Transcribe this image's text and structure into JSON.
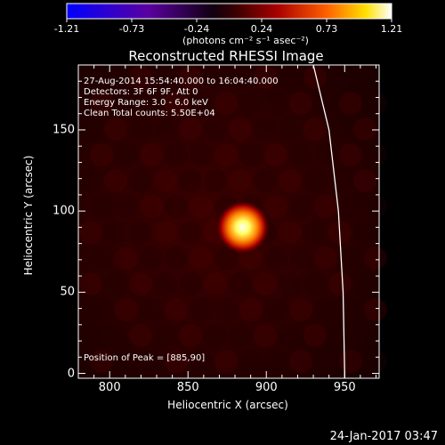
{
  "colorbar": {
    "ticks": [
      "-1.21",
      "-0.73",
      "-0.24",
      "0.24",
      "0.73",
      "1.21"
    ],
    "unit_label": "(photons cm⁻² s⁻¹ asec⁻²)",
    "colors": [
      "#0000ff",
      "#5a00a0",
      "#000000",
      "#7a0000",
      "#ff5000",
      "#ffe000",
      "#ffffff"
    ]
  },
  "chart_data": {
    "type": "heatmap",
    "title": "Reconstructed RHESSI Image",
    "xlabel": "Heliocentric X (arcsec)",
    "ylabel": "Heliocentric Y (arcsec)",
    "xlim": [
      780,
      972
    ],
    "ylim": [
      -3,
      190
    ],
    "xticks": [
      800,
      850,
      900,
      950
    ],
    "yticks": [
      0,
      50,
      100,
      150
    ],
    "info_lines": [
      "27-Aug-2014 15:54:40.000 to 16:04:40.000",
      "Detectors: 3F 6F 9F, Att 0",
      "Energy Range: 3.0 - 6.0 keV",
      "Clean     Total counts: 5.50E+04"
    ],
    "peak_label": "Position of Peak = [885,90]",
    "peak": [
      885,
      90
    ],
    "limb_curve": [
      [
        930,
        190
      ],
      [
        940,
        150
      ],
      [
        946,
        100
      ],
      [
        949,
        50
      ],
      [
        950,
        0
      ],
      [
        950,
        -3
      ]
    ]
  },
  "timestamp": "24-Jan-2017 03:47"
}
